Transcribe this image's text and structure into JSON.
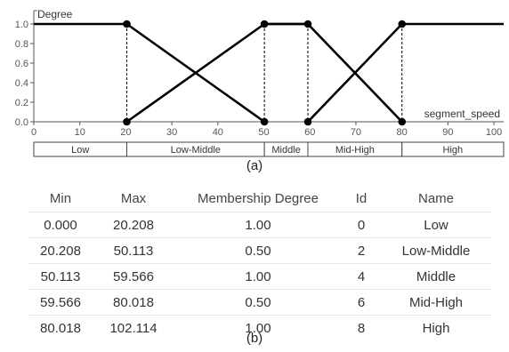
{
  "chart_data": {
    "type": "line",
    "ylabel": "Degree",
    "xlabel": "segment_speed",
    "xlim": [
      0,
      102.114
    ],
    "ylim": [
      0,
      1.0
    ],
    "x_ticks": [
      0,
      10,
      20,
      30,
      40,
      50,
      60,
      70,
      80,
      90,
      100
    ],
    "y_ticks": [
      "0.0",
      "0.2",
      "0.4",
      "0.6",
      "0.8",
      "1.0"
    ],
    "y_tick_values": [
      0,
      0.2,
      0.4,
      0.6,
      0.8,
      1.0
    ],
    "series": [
      {
        "name": "Low",
        "x": [
          0,
          20.208,
          50.113
        ],
        "y": [
          1,
          1,
          0
        ]
      },
      {
        "name": "Low-Middle",
        "x": [
          20.208,
          50.113,
          59.566
        ],
        "y": [
          0,
          1,
          1
        ]
      },
      {
        "name": "Middle",
        "x": [
          50.113,
          59.566,
          80.018
        ],
        "y": [
          1,
          1,
          0
        ]
      },
      {
        "name": "Mid-High",
        "x": [
          59.566,
          80.018,
          102.114
        ],
        "y": [
          0,
          1,
          1
        ]
      }
    ],
    "points": [
      {
        "x": 20.208,
        "y": 1
      },
      {
        "x": 20.208,
        "y": 0
      },
      {
        "x": 50.113,
        "y": 1
      },
      {
        "x": 50.113,
        "y": 0
      },
      {
        "x": 59.566,
        "y": 1
      },
      {
        "x": 59.566,
        "y": 0
      },
      {
        "x": 80.018,
        "y": 1
      },
      {
        "x": 80.018,
        "y": 0
      }
    ],
    "dashed_x": [
      20.208,
      50.113,
      59.566,
      80.018
    ],
    "segments": [
      {
        "label": "Low",
        "from": 0,
        "to": 20.208
      },
      {
        "label": "Low-Middle",
        "from": 20.208,
        "to": 50.113
      },
      {
        "label": "Middle",
        "from": 50.113,
        "to": 59.566
      },
      {
        "label": "Mid-High",
        "from": 59.566,
        "to": 80.018
      },
      {
        "label": "High",
        "from": 80.018,
        "to": 102.114
      }
    ],
    "grid": false,
    "line_color": "#000000"
  },
  "captions": {
    "a": "(a)",
    "b": "(b)"
  },
  "table": {
    "headers": [
      "Min",
      "Max",
      "Membership Degree",
      "Id",
      "Name"
    ],
    "rows": [
      [
        "0.000",
        "20.208",
        "1.00",
        "0",
        "Low"
      ],
      [
        "20.208",
        "50.113",
        "0.50",
        "2",
        "Low-Middle"
      ],
      [
        "50.113",
        "59.566",
        "1.00",
        "4",
        "Middle"
      ],
      [
        "59.566",
        "80.018",
        "0.50",
        "6",
        "Mid-High"
      ],
      [
        "80.018",
        "102.114",
        "1.00",
        "8",
        "High"
      ]
    ]
  }
}
